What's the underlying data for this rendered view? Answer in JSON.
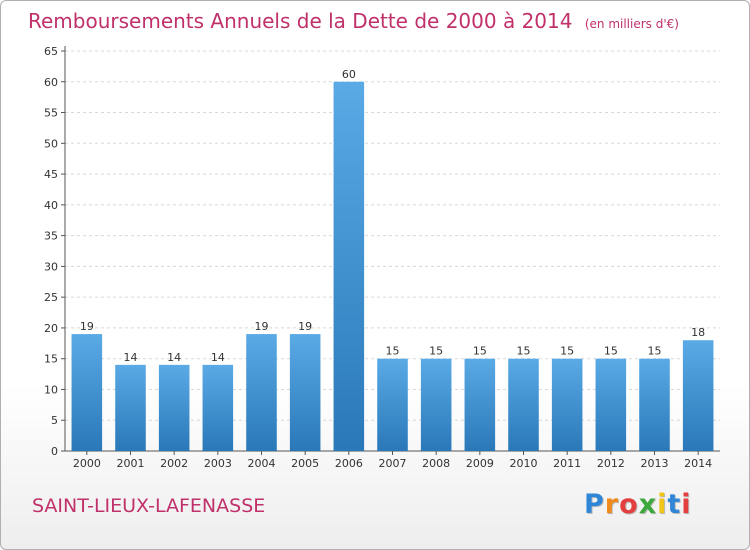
{
  "header": {
    "title": "Remboursements Annuels de la Dette de 2000 à 2014",
    "subtitle": "(en milliers d'€)"
  },
  "footer": {
    "commune": "SAINT-LIEUX-LAFENASSE",
    "logo_letters": [
      "P",
      "r",
      "o",
      "x",
      "i",
      "t",
      "i"
    ],
    "logo_colors": [
      "#2f86d6",
      "#f08a1c",
      "#e43f3f",
      "#3aa83a",
      "#f0c419",
      "#2f86d6",
      "#e43f3f"
    ]
  },
  "chart_data": {
    "type": "bar",
    "categories": [
      "2000",
      "2001",
      "2002",
      "2003",
      "2004",
      "2005",
      "2006",
      "2007",
      "2008",
      "2009",
      "2010",
      "2011",
      "2012",
      "2013",
      "2014"
    ],
    "values": [
      19,
      14,
      14,
      14,
      19,
      19,
      60,
      15,
      15,
      15,
      15,
      15,
      15,
      15,
      18
    ],
    "ylim": [
      0,
      65
    ],
    "yticks": [
      0,
      5,
      10,
      15,
      20,
      25,
      30,
      35,
      40,
      45,
      50,
      55,
      60,
      65
    ],
    "grid": true,
    "bar_color_top": "#5aaae6",
    "bar_color_bottom": "#2a78b8"
  }
}
